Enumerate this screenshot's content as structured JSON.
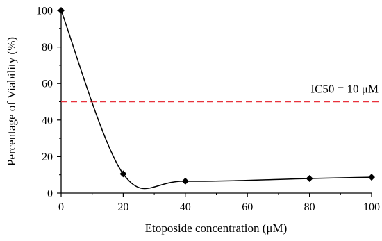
{
  "chart_data": {
    "type": "scatter",
    "title": "",
    "xlabel": "Etoposide concentration (μM)",
    "ylabel": "Percentage of Viability (%)",
    "xlim": [
      0,
      100
    ],
    "ylim": [
      0,
      100
    ],
    "x_ticks": [
      "0",
      "20",
      "40",
      "60",
      "80",
      "100"
    ],
    "y_ticks": [
      "0",
      "20",
      "40",
      "60",
      "80",
      "100"
    ],
    "series": [
      {
        "x": [
          0,
          20,
          40,
          80,
          100
        ],
        "y": [
          100,
          10.5,
          6.5,
          8,
          8.7
        ],
        "marker": "diamond",
        "line": "smooth",
        "color": "#000000"
      }
    ],
    "reference_lines": [
      {
        "y": 50,
        "style": "dashed",
        "color": "#e8323c",
        "label": "IC50 = 10 μM"
      }
    ],
    "grid": false,
    "legend": "none"
  }
}
